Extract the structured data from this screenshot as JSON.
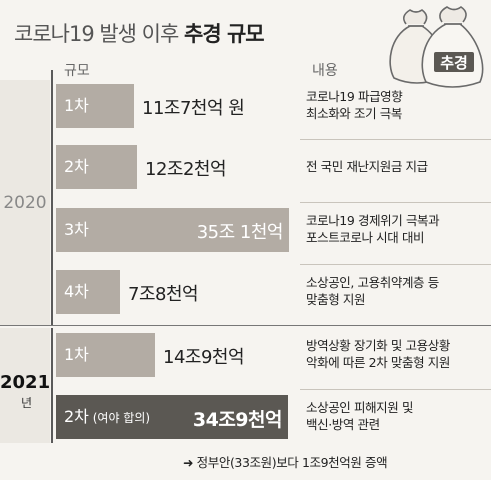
{
  "title_plain": "코로나19 발생 이후",
  "title_bold": "추경 규모",
  "bag_label": "추경",
  "headers": {
    "scale": "규모",
    "content": "내용"
  },
  "footnote": "➜ 정부안(33조원)보다 1조9천억원 증액",
  "chart_data": {
    "type": "bar",
    "orientation": "horizontal",
    "unit": "조원",
    "years": [
      {
        "label": "2020",
        "suffix": ""
      },
      {
        "label": "2021",
        "suffix": "년"
      }
    ],
    "rows": [
      {
        "year": "2020",
        "round": "1차",
        "round_note": "",
        "value": 11.7,
        "amount_label": "11조7천억 원",
        "desc": [
          "코로나19 파급영향",
          "최소화와 조기 극복"
        ]
      },
      {
        "year": "2020",
        "round": "2차",
        "round_note": "",
        "value": 12.2,
        "amount_label": "12조2천억",
        "desc": [
          "전 국민 재난지원금 지급"
        ]
      },
      {
        "year": "2020",
        "round": "3차",
        "round_note": "",
        "value": 35.1,
        "amount_label": "35조 1천억",
        "desc": [
          "코로나19 경제위기 극복과",
          "포스트코로나 시대 대비"
        ]
      },
      {
        "year": "2020",
        "round": "4차",
        "round_note": "",
        "value": 7.8,
        "amount_label": "7조8천억",
        "desc": [
          "소상공인, 고용취약계층 등",
          "맞춤형 지원"
        ]
      },
      {
        "year": "2021",
        "round": "1차",
        "round_note": "",
        "value": 14.9,
        "amount_label": "14조9천억",
        "desc": [
          "방역상황 장기화 및 고용상황",
          "악화에 따른 2차 맞춤형 지원"
        ]
      },
      {
        "year": "2021",
        "round": "2차",
        "round_note": "(여야 합의)",
        "value": 34.9,
        "amount_label": "34조9천억",
        "desc": [
          "소상공인 피해지원 및",
          "백신·방역 관련"
        ]
      }
    ]
  }
}
